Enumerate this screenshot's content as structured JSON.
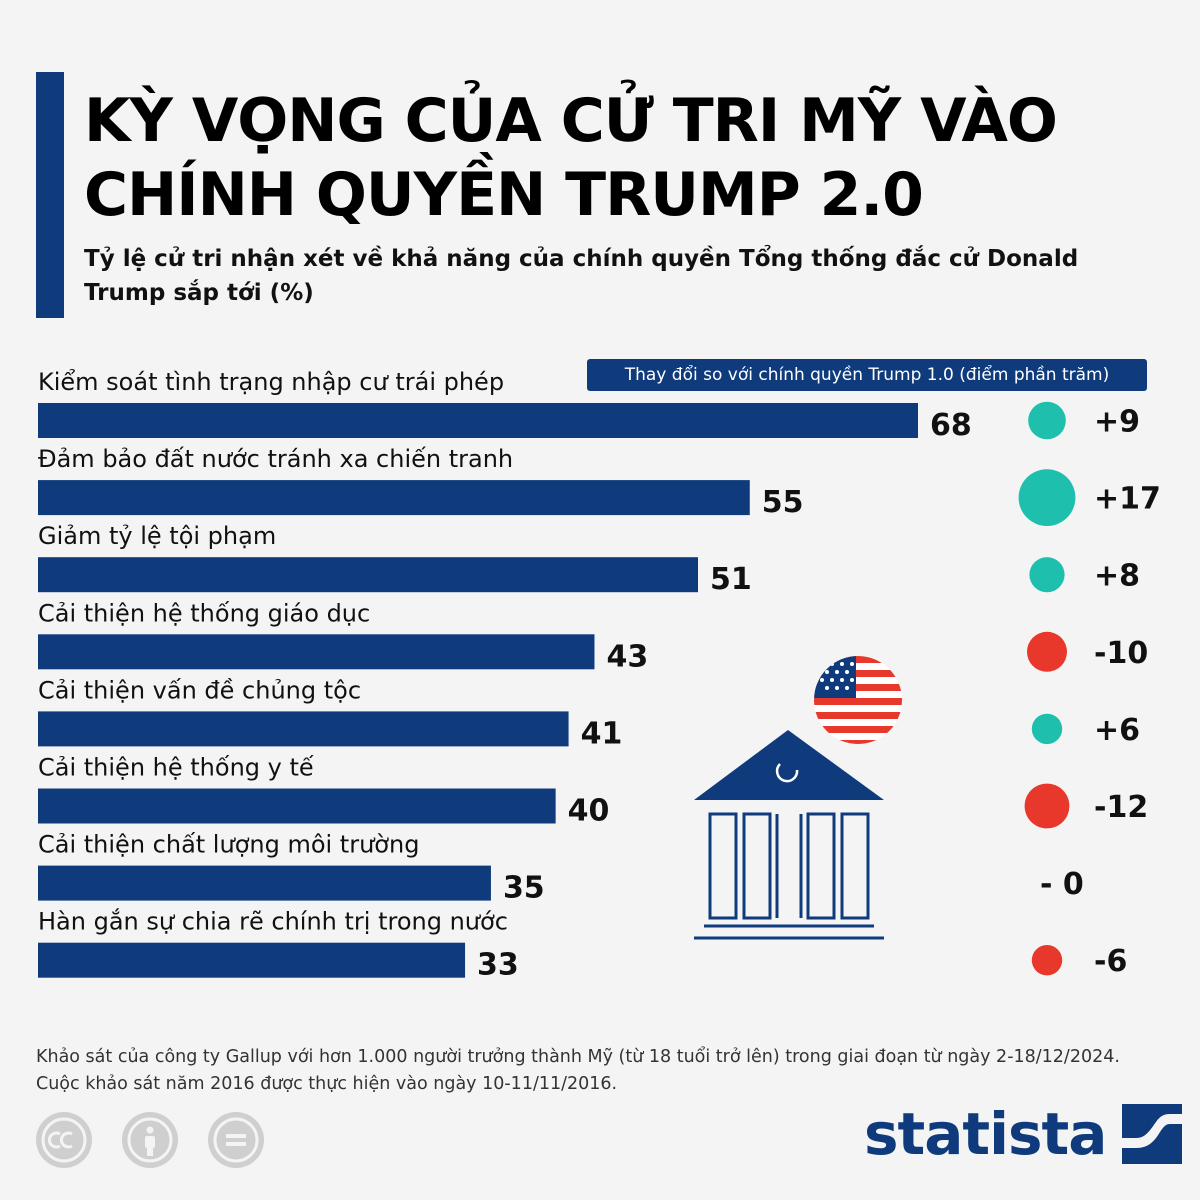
{
  "header": {
    "title": "KỲ VỌNG CỦA CỬ TRI MỸ VÀO CHÍNH QUYỀN TRUMP 2.0",
    "subtitle": "Tỷ lệ cử tri nhận xét về khả năng của chính quyền Tổng thống đắc cử Donald Trump sắp tới (%)"
  },
  "legend": {
    "change_label": "Thay đổi so với chính quyền Trump 1.0 (điểm phần trăm)"
  },
  "colors": {
    "bar": "#0f3b7d",
    "positive": "#1fbfae",
    "negative": "#e8382b",
    "accent": "#0f3b7d"
  },
  "chart_data": {
    "type": "bar",
    "orientation": "horizontal",
    "title": "KỲ VỌNG CỦA CỬ TRI MỸ VÀO CHÍNH QUYỀN TRUMP 2.0",
    "xlabel": "",
    "ylabel": "",
    "xlim": [
      0,
      70
    ],
    "categories": [
      "Kiểm soát tình trạng nhập cư trái phép",
      "Đảm bảo đất nước tránh xa chiến tranh",
      "Giảm tỷ lệ tội phạm",
      "Cải thiện hệ thống giáo dục",
      "Cải thiện vấn đề chủng tộc",
      "Cải thiện hệ thống y tế",
      "Cải thiện chất lượng môi trường",
      "Hàn gắn sự chia rẽ chính trị trong nước"
    ],
    "values": [
      68,
      55,
      51,
      43,
      41,
      40,
      35,
      33
    ],
    "change": [
      9,
      17,
      8,
      -10,
      6,
      -12,
      0,
      -6
    ],
    "change_labels": [
      "+9",
      "+17",
      "+8",
      "-10",
      "+6",
      "-12",
      "- 0",
      "-6"
    ]
  },
  "footer": {
    "note": "Khảo sát của công ty Gallup với hơn 1.000 người trưởng thành Mỹ (từ 18 tuổi trở lên) trong giai đoạn từ ngày 2-18/12/2024. Cuộc khảo sát năm 2016 được thực hiện vào ngày 10-11/11/2016.",
    "brand": "statista",
    "icons": [
      "cc-icon",
      "by-icon",
      "nd-icon"
    ]
  }
}
